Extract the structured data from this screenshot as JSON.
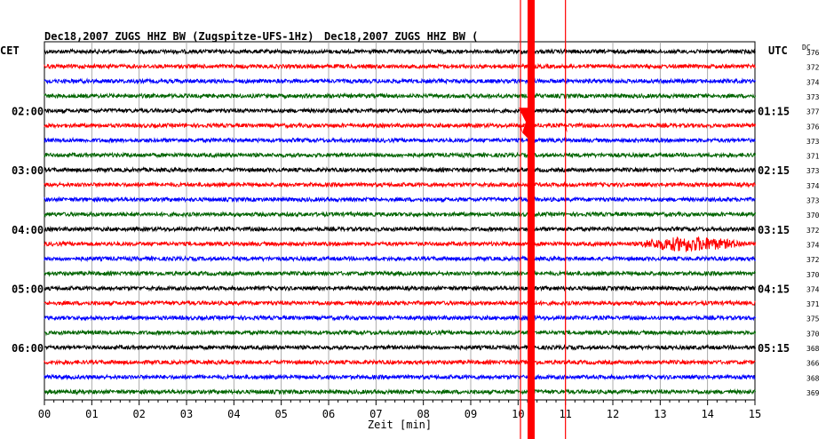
{
  "header": {
    "title_1": "Dec18,2007   ZUGS HHZ BW (Zugspitze-UFS-1Hz)",
    "title_2": "Dec18,2007   ZUGS HHZ BW (",
    "left_zone": "CET",
    "right_zone": "UTC",
    "dc_label": "DC"
  },
  "chart_data": {
    "type": "line",
    "title": "Dec18,2007   ZUGS HHZ BW (Zugspitze-UFS-1Hz)",
    "xlabel": "Zeit [min]",
    "ylabel": "",
    "xlim": [
      0,
      15
    ],
    "x_ticks": [
      "00",
      "01",
      "02",
      "03",
      "04",
      "05",
      "06",
      "07",
      "08",
      "09",
      "10",
      "11",
      "12",
      "13",
      "14",
      "15"
    ],
    "left_time_labels": [
      {
        "trace": 4,
        "label": "02:00"
      },
      {
        "trace": 8,
        "label": "03:00"
      },
      {
        "trace": 12,
        "label": "04:00"
      },
      {
        "trace": 16,
        "label": "05:00"
      },
      {
        "trace": 20,
        "label": "06:00"
      }
    ],
    "right_time_labels": [
      {
        "trace": 4,
        "label": "01:15"
      },
      {
        "trace": 8,
        "label": "02:15"
      },
      {
        "trace": 12,
        "label": "03:15"
      },
      {
        "trace": 16,
        "label": "04:15"
      },
      {
        "trace": 20,
        "label": "05:15"
      }
    ],
    "trace_colors": [
      "#000000",
      "#ff0000",
      "#0000ff",
      "#006400"
    ],
    "dc_values": [
      "376",
      "372",
      "374",
      "373",
      "377",
      "376",
      "373",
      "371",
      "373",
      "374",
      "373",
      "370",
      "372",
      "374",
      "372",
      "370",
      "374",
      "371",
      "375",
      "370",
      "368",
      "366",
      "368",
      "369"
    ],
    "grid": true,
    "events": [
      {
        "type": "saturated_band",
        "x_min": 10.2,
        "x_max": 10.35,
        "color": "#ff0000"
      },
      {
        "type": "spike_line",
        "x_min": 10.05,
        "color": "#ff0000"
      },
      {
        "type": "spike_line",
        "x_min": 11.0,
        "color": "#ff0000"
      },
      {
        "type": "local_event",
        "trace": 13,
        "x_start": 12.6,
        "x_end": 14.8,
        "peak_x": 13.6
      }
    ]
  }
}
